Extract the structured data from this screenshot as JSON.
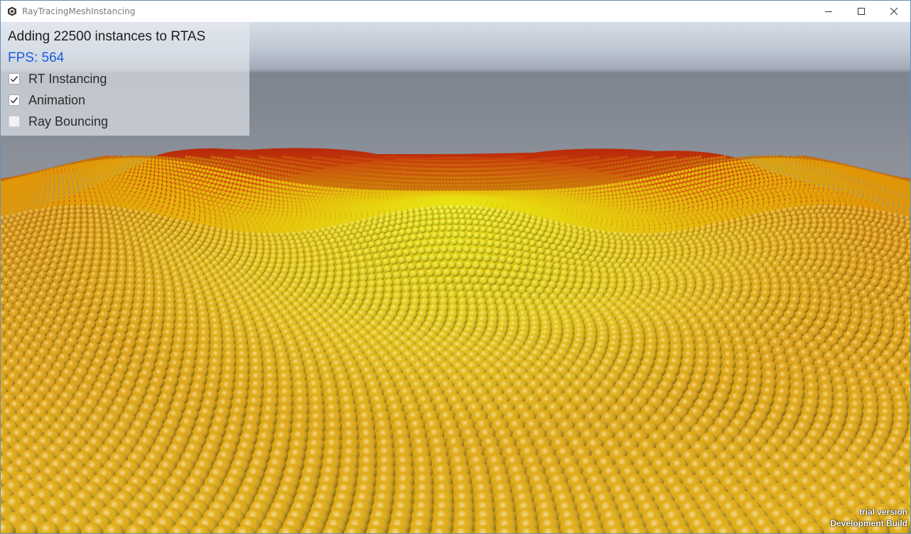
{
  "window": {
    "title": "RayTracingMeshInstancing",
    "controls": {
      "minimize_icon": "minimize-icon",
      "maximize_icon": "maximize-icon",
      "close_icon": "close-icon"
    }
  },
  "overlay": {
    "title": "Adding 22500 instances to RTAS",
    "fps": "FPS: 564",
    "options": [
      {
        "label": "RT Instancing",
        "checked": true
      },
      {
        "label": "Animation",
        "checked": true
      },
      {
        "label": "Ray Bouncing",
        "checked": false
      }
    ]
  },
  "scene": {
    "description_colors": {
      "sky_top": "#d6dde6",
      "horizon": "#7e8590",
      "sphere_far": "#c8300a",
      "sphere_mid": "#e08a10",
      "sphere_center": "#e8e010",
      "sphere_near": "#e0a008"
    }
  },
  "watermark": {
    "line1": "trial version",
    "line2": "Development Build"
  }
}
